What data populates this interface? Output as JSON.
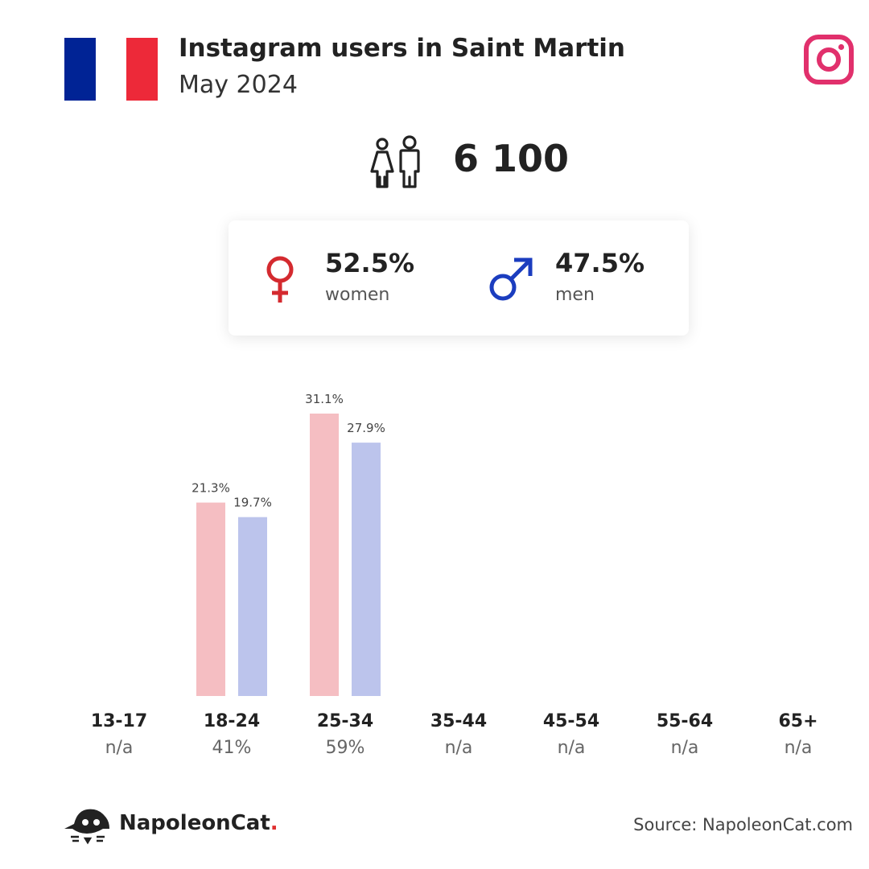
{
  "header": {
    "title": "Instagram users in Saint Martin",
    "subtitle": "May 2024"
  },
  "total_users": "6 100",
  "gender": {
    "women_pct": "52.5%",
    "women_label": "women",
    "men_pct": "47.5%",
    "men_label": "men"
  },
  "colors": {
    "women_bar": "#F5BEC2",
    "men_bar": "#BCC4EC",
    "female_symbol": "#D42A2F",
    "male_symbol": "#1B3DBF",
    "instagram": "#E1306C"
  },
  "chart_data": {
    "type": "bar",
    "categories": [
      "13-17",
      "18-24",
      "25-34",
      "35-44",
      "45-54",
      "55-64",
      "65+"
    ],
    "category_shares": [
      "n/a",
      "41%",
      "59%",
      "n/a",
      "n/a",
      "n/a",
      "n/a"
    ],
    "series": [
      {
        "name": "women",
        "values": [
          null,
          21.3,
          31.1,
          null,
          null,
          null,
          null
        ],
        "labels": [
          "",
          "21.3%",
          "31.1%",
          "",
          "",
          "",
          ""
        ]
      },
      {
        "name": "men",
        "values": [
          null,
          19.7,
          27.9,
          null,
          null,
          null,
          null
        ],
        "labels": [
          "",
          "19.7%",
          "27.9%",
          "",
          "",
          "",
          ""
        ]
      }
    ],
    "ylim": [
      0,
      31.1
    ]
  },
  "footer": {
    "brand": "NapoleonCat",
    "brand_dot": ".",
    "source": "Source: NapoleonCat.com"
  }
}
